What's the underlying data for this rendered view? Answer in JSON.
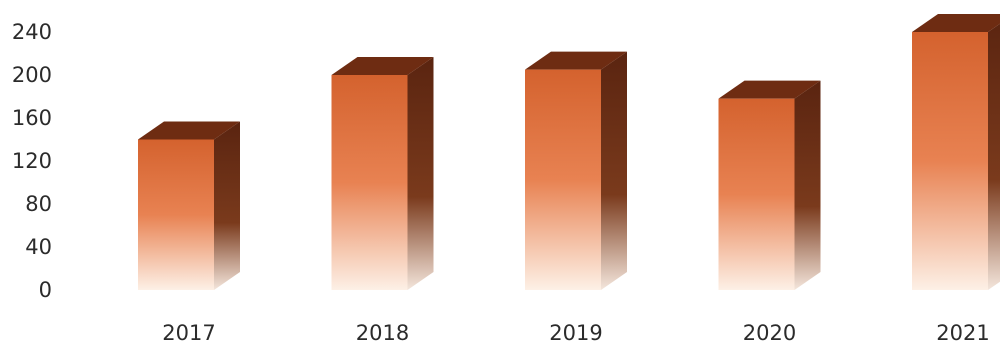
{
  "chart_data": {
    "type": "bar",
    "title": "",
    "xlabel": "",
    "ylabel": "",
    "categories": [
      "2017",
      "2018",
      "2019",
      "2020",
      "2021"
    ],
    "values": [
      140,
      200,
      205,
      178,
      240
    ],
    "ylim": [
      0,
      240
    ],
    "yticks": [
      "0",
      "40",
      "80",
      "120",
      "160",
      "200",
      "240"
    ],
    "grid": false,
    "legend": "none",
    "style": "3d-column-gradient",
    "colors": {
      "front_top": "#d4622e",
      "front_mid": "#e88252",
      "front_bottom": "#fdf0e6",
      "side": "#5a2410",
      "side_mid": "#7a3a1c",
      "top": "#6e2c12"
    }
  }
}
